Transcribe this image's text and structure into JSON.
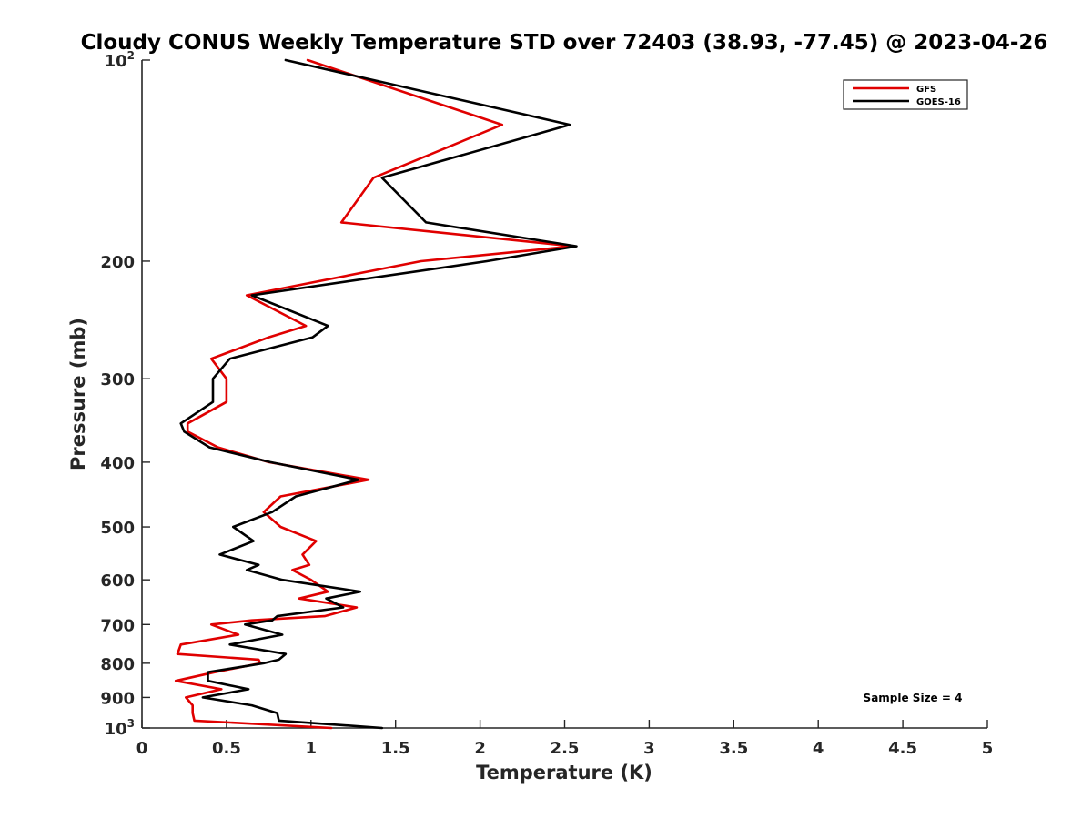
{
  "chart_data": {
    "type": "line",
    "title": "Cloudy CONUS Weekly Temperature STD over 72403 (38.93, -77.45) @ 2023-04-26",
    "xlabel": "Temperature (K)",
    "ylabel": "Pressure (mb)",
    "xlim": [
      0,
      5
    ],
    "ylim": [
      100,
      1000
    ],
    "y_scale": "log",
    "y_reversed": true,
    "x_ticks": [
      "0",
      "0.5",
      "1",
      "1.5",
      "2",
      "2.5",
      "3",
      "3.5",
      "4",
      "4.5",
      "5"
    ],
    "y_ticks": [
      {
        "value": 100,
        "base": "10",
        "exp": "2"
      },
      {
        "value": 200,
        "label": "200"
      },
      {
        "value": 300,
        "label": "300"
      },
      {
        "value": 400,
        "label": "400"
      },
      {
        "value": 500,
        "label": "500"
      },
      {
        "value": 600,
        "label": "600"
      },
      {
        "value": 700,
        "label": "700"
      },
      {
        "value": 800,
        "label": "800"
      },
      {
        "value": 900,
        "label": "900"
      },
      {
        "value": 1000,
        "base": "10",
        "exp": "3"
      }
    ],
    "grid": false,
    "legend_position": "top-right",
    "annotation": "Sample Size = 4",
    "series": [
      {
        "name": "GFS",
        "color": "#e00000",
        "points": [
          [
            0.98,
            100
          ],
          [
            2.13,
            125
          ],
          [
            1.37,
            150
          ],
          [
            1.18,
            175
          ],
          [
            2.55,
            190
          ],
          [
            1.65,
            200
          ],
          [
            0.62,
            225
          ],
          [
            0.97,
            250
          ],
          [
            0.75,
            260
          ],
          [
            0.41,
            280
          ],
          [
            0.5,
            300
          ],
          [
            0.5,
            325
          ],
          [
            0.27,
            350
          ],
          [
            0.27,
            360
          ],
          [
            0.45,
            380
          ],
          [
            0.75,
            400
          ],
          [
            1.34,
            425
          ],
          [
            0.82,
            450
          ],
          [
            0.72,
            475
          ],
          [
            0.82,
            500
          ],
          [
            1.03,
            525
          ],
          [
            0.95,
            550
          ],
          [
            0.99,
            570
          ],
          [
            0.89,
            580
          ],
          [
            1.0,
            600
          ],
          [
            1.1,
            625
          ],
          [
            0.93,
            640
          ],
          [
            1.27,
            660
          ],
          [
            1.08,
            680
          ],
          [
            0.65,
            690
          ],
          [
            0.41,
            700
          ],
          [
            0.57,
            725
          ],
          [
            0.23,
            750
          ],
          [
            0.21,
            775
          ],
          [
            0.69,
            790
          ],
          [
            0.7,
            800
          ],
          [
            0.43,
            825
          ],
          [
            0.2,
            850
          ],
          [
            0.47,
            875
          ],
          [
            0.26,
            900
          ],
          [
            0.3,
            925
          ],
          [
            0.3,
            950
          ],
          [
            0.31,
            975
          ],
          [
            1.12,
            1000
          ]
        ]
      },
      {
        "name": "GOES-16",
        "color": "#000000",
        "points": [
          [
            0.85,
            100
          ],
          [
            2.53,
            125
          ],
          [
            1.42,
            150
          ],
          [
            1.68,
            175
          ],
          [
            2.57,
            190
          ],
          [
            2.04,
            200
          ],
          [
            0.65,
            225
          ],
          [
            1.1,
            250
          ],
          [
            1.01,
            260
          ],
          [
            0.52,
            280
          ],
          [
            0.42,
            300
          ],
          [
            0.42,
            325
          ],
          [
            0.23,
            350
          ],
          [
            0.25,
            360
          ],
          [
            0.4,
            380
          ],
          [
            0.76,
            400
          ],
          [
            1.28,
            425
          ],
          [
            0.91,
            450
          ],
          [
            0.77,
            475
          ],
          [
            0.54,
            500
          ],
          [
            0.66,
            525
          ],
          [
            0.46,
            550
          ],
          [
            0.69,
            570
          ],
          [
            0.62,
            580
          ],
          [
            0.83,
            600
          ],
          [
            1.29,
            625
          ],
          [
            1.09,
            640
          ],
          [
            1.19,
            660
          ],
          [
            0.8,
            680
          ],
          [
            0.77,
            690
          ],
          [
            0.61,
            700
          ],
          [
            0.83,
            725
          ],
          [
            0.52,
            750
          ],
          [
            0.85,
            775
          ],
          [
            0.81,
            790
          ],
          [
            0.72,
            800
          ],
          [
            0.39,
            825
          ],
          [
            0.39,
            850
          ],
          [
            0.63,
            875
          ],
          [
            0.36,
            900
          ],
          [
            0.65,
            925
          ],
          [
            0.8,
            950
          ],
          [
            0.81,
            975
          ],
          [
            1.42,
            1000
          ]
        ]
      }
    ]
  }
}
